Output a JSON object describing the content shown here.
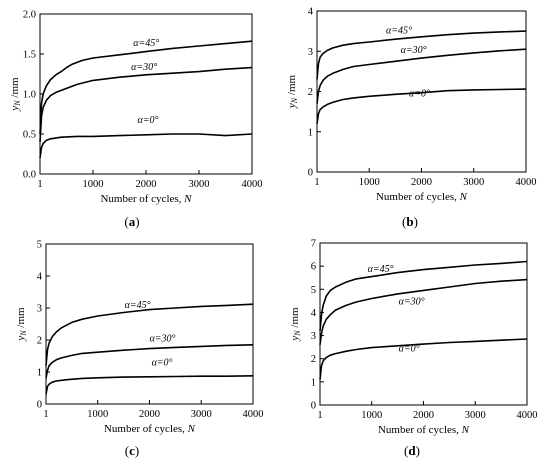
{
  "figure": {
    "captions": [
      "(a)",
      "(b)",
      "(c)",
      "(d)"
    ]
  },
  "chart_data": [
    {
      "type": "line",
      "panel": "(a)",
      "xlabel": "Number of cycles, N",
      "ylabel": "y_N /mm",
      "xlim": [
        1,
        4000
      ],
      "ylim": [
        0,
        2.0
      ],
      "xticks": [
        "1",
        "1000",
        "2000",
        "3000",
        "4000"
      ],
      "yticks": [
        "0.0",
        "0.5",
        "1.0",
        "1.5",
        "2.0"
      ],
      "series": [
        {
          "name": "α=45°",
          "points": [
            [
              1,
              0.5
            ],
            [
              30,
              0.88
            ],
            [
              60,
              1.0
            ],
            [
              120,
              1.1
            ],
            [
              200,
              1.18
            ],
            [
              300,
              1.24
            ],
            [
              400,
              1.28
            ],
            [
              500,
              1.33
            ],
            [
              600,
              1.37
            ],
            [
              800,
              1.42
            ],
            [
              1000,
              1.45
            ],
            [
              1500,
              1.49
            ],
            [
              2000,
              1.53
            ],
            [
              2500,
              1.57
            ],
            [
              3000,
              1.6
            ],
            [
              3500,
              1.63
            ],
            [
              4000,
              1.66
            ]
          ]
        },
        {
          "name": "α=30°",
          "points": [
            [
              1,
              0.4
            ],
            [
              30,
              0.72
            ],
            [
              60,
              0.83
            ],
            [
              120,
              0.92
            ],
            [
              200,
              0.98
            ],
            [
              300,
              1.02
            ],
            [
              500,
              1.07
            ],
            [
              700,
              1.12
            ],
            [
              1000,
              1.17
            ],
            [
              1500,
              1.21
            ],
            [
              2000,
              1.24
            ],
            [
              2500,
              1.26
            ],
            [
              3000,
              1.28
            ],
            [
              3500,
              1.31
            ],
            [
              4000,
              1.33
            ]
          ]
        },
        {
          "name": "α=0°",
          "points": [
            [
              1,
              0.2
            ],
            [
              30,
              0.33
            ],
            [
              60,
              0.38
            ],
            [
              120,
              0.42
            ],
            [
              200,
              0.44
            ],
            [
              400,
              0.46
            ],
            [
              700,
              0.47
            ],
            [
              1000,
              0.47
            ],
            [
              1500,
              0.48
            ],
            [
              2000,
              0.49
            ],
            [
              2500,
              0.5
            ],
            [
              3000,
              0.5
            ],
            [
              3500,
              0.48
            ],
            [
              4000,
              0.5
            ]
          ]
        }
      ]
    },
    {
      "type": "line",
      "panel": "(b)",
      "xlabel": "Number of cycles, N",
      "ylabel": "y_N /mm",
      "xlim": [
        1,
        4000
      ],
      "ylim": [
        0,
        4
      ],
      "xticks": [
        "1",
        "1000",
        "2000",
        "3000",
        "4000"
      ],
      "yticks": [
        "0",
        "1",
        "2",
        "3",
        "4"
      ],
      "series": [
        {
          "name": "α=45°",
          "points": [
            [
              1,
              2.3
            ],
            [
              30,
              2.7
            ],
            [
              60,
              2.85
            ],
            [
              120,
              2.95
            ],
            [
              200,
              3.02
            ],
            [
              300,
              3.08
            ],
            [
              500,
              3.15
            ],
            [
              700,
              3.19
            ],
            [
              1000,
              3.23
            ],
            [
              1500,
              3.3
            ],
            [
              2000,
              3.36
            ],
            [
              2500,
              3.41
            ],
            [
              3000,
              3.45
            ],
            [
              3500,
              3.48
            ],
            [
              4000,
              3.5
            ]
          ]
        },
        {
          "name": "α=30°",
          "points": [
            [
              1,
              1.7
            ],
            [
              30,
              2.0
            ],
            [
              60,
              2.15
            ],
            [
              120,
              2.28
            ],
            [
              200,
              2.38
            ],
            [
              300,
              2.45
            ],
            [
              500,
              2.55
            ],
            [
              700,
              2.62
            ],
            [
              1000,
              2.67
            ],
            [
              1500,
              2.75
            ],
            [
              2000,
              2.83
            ],
            [
              2500,
              2.9
            ],
            [
              3000,
              2.96
            ],
            [
              3500,
              3.01
            ],
            [
              4000,
              3.05
            ]
          ]
        },
        {
          "name": "α=0°",
          "points": [
            [
              1,
              1.2
            ],
            [
              30,
              1.45
            ],
            [
              60,
              1.55
            ],
            [
              120,
              1.62
            ],
            [
              200,
              1.68
            ],
            [
              300,
              1.73
            ],
            [
              500,
              1.8
            ],
            [
              700,
              1.84
            ],
            [
              1000,
              1.88
            ],
            [
              1500,
              1.93
            ],
            [
              2000,
              1.97
            ],
            [
              2500,
              2.02
            ],
            [
              3000,
              2.04
            ],
            [
              3500,
              2.05
            ],
            [
              4000,
              2.06
            ]
          ]
        }
      ]
    },
    {
      "type": "line",
      "panel": "(c)",
      "xlabel": "Number of cycles, N",
      "ylabel": "y_N /mm",
      "xlim": [
        1,
        4000
      ],
      "ylim": [
        0,
        5
      ],
      "xticks": [
        "1",
        "1000",
        "2000",
        "3000",
        "4000"
      ],
      "yticks": [
        "0",
        "1",
        "2",
        "3",
        "4",
        "5"
      ],
      "series": [
        {
          "name": "α=45°",
          "points": [
            [
              1,
              1.2
            ],
            [
              30,
              1.7
            ],
            [
              60,
              1.9
            ],
            [
              120,
              2.1
            ],
            [
              200,
              2.25
            ],
            [
              300,
              2.38
            ],
            [
              500,
              2.55
            ],
            [
              700,
              2.65
            ],
            [
              1000,
              2.75
            ],
            [
              1500,
              2.86
            ],
            [
              2000,
              2.95
            ],
            [
              2500,
              3.0
            ],
            [
              3000,
              3.05
            ],
            [
              3500,
              3.08
            ],
            [
              4000,
              3.12
            ]
          ]
        },
        {
          "name": "α=30°",
          "points": [
            [
              1,
              0.8
            ],
            [
              30,
              1.05
            ],
            [
              60,
              1.2
            ],
            [
              120,
              1.3
            ],
            [
              200,
              1.38
            ],
            [
              300,
              1.44
            ],
            [
              500,
              1.52
            ],
            [
              700,
              1.58
            ],
            [
              1000,
              1.62
            ],
            [
              1500,
              1.68
            ],
            [
              2000,
              1.73
            ],
            [
              2500,
              1.77
            ],
            [
              3000,
              1.8
            ],
            [
              3500,
              1.83
            ],
            [
              4000,
              1.85
            ]
          ]
        },
        {
          "name": "α=0°",
          "points": [
            [
              1,
              0.3
            ],
            [
              30,
              0.55
            ],
            [
              60,
              0.62
            ],
            [
              120,
              0.68
            ],
            [
              200,
              0.72
            ],
            [
              400,
              0.76
            ],
            [
              700,
              0.8
            ],
            [
              1000,
              0.82
            ],
            [
              1500,
              0.84
            ],
            [
              2000,
              0.85
            ],
            [
              2500,
              0.86
            ],
            [
              3000,
              0.87
            ],
            [
              3500,
              0.87
            ],
            [
              4000,
              0.88
            ]
          ]
        }
      ]
    },
    {
      "type": "line",
      "panel": "(d)",
      "xlabel": "Number of cycles, N",
      "ylabel": "y_N /mm",
      "xlim": [
        1,
        4000
      ],
      "ylim": [
        0,
        7
      ],
      "xticks": [
        "1",
        "1000",
        "2000",
        "3000",
        "4000"
      ],
      "yticks": [
        "0",
        "1",
        "2",
        "3",
        "4",
        "5",
        "6",
        "7"
      ],
      "series": [
        {
          "name": "α=45°",
          "points": [
            [
              1,
              3.2
            ],
            [
              30,
              3.9
            ],
            [
              60,
              4.3
            ],
            [
              120,
              4.7
            ],
            [
              200,
              4.95
            ],
            [
              300,
              5.1
            ],
            [
              500,
              5.3
            ],
            [
              700,
              5.45
            ],
            [
              1000,
              5.55
            ],
            [
              1500,
              5.72
            ],
            [
              2000,
              5.85
            ],
            [
              2500,
              5.95
            ],
            [
              3000,
              6.05
            ],
            [
              3500,
              6.12
            ],
            [
              4000,
              6.2
            ]
          ]
        },
        {
          "name": "α=30°",
          "points": [
            [
              1,
              2.6
            ],
            [
              30,
              3.1
            ],
            [
              60,
              3.4
            ],
            [
              120,
              3.7
            ],
            [
              200,
              3.9
            ],
            [
              300,
              4.1
            ],
            [
              500,
              4.3
            ],
            [
              700,
              4.45
            ],
            [
              1000,
              4.6
            ],
            [
              1500,
              4.8
            ],
            [
              2000,
              4.95
            ],
            [
              2500,
              5.1
            ],
            [
              3000,
              5.25
            ],
            [
              3500,
              5.35
            ],
            [
              4000,
              5.42
            ]
          ]
        },
        {
          "name": "α=0°",
          "points": [
            [
              1,
              1.1
            ],
            [
              30,
              1.7
            ],
            [
              60,
              1.9
            ],
            [
              120,
              2.05
            ],
            [
              200,
              2.15
            ],
            [
              300,
              2.22
            ],
            [
              500,
              2.32
            ],
            [
              700,
              2.4
            ],
            [
              1000,
              2.48
            ],
            [
              1500,
              2.56
            ],
            [
              2000,
              2.63
            ],
            [
              2500,
              2.7
            ],
            [
              3000,
              2.75
            ],
            [
              3500,
              2.8
            ],
            [
              4000,
              2.85
            ]
          ]
        }
      ]
    }
  ]
}
